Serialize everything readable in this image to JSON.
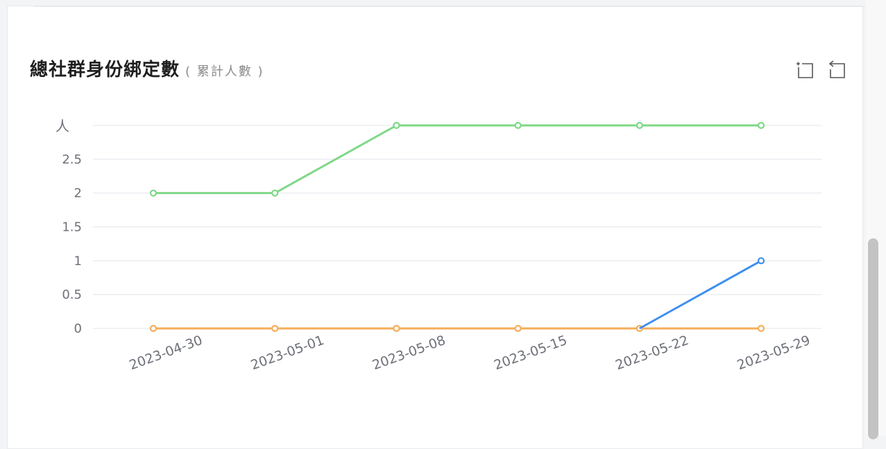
{
  "header": {
    "title": "總社群身份綁定數",
    "subtitle": "( 累計人數 )"
  },
  "toolbar": {
    "zoom_icon": "zoom-select-icon",
    "restore_icon": "zoom-restore-icon"
  },
  "colors": {
    "green": "#7ed886",
    "blue": "#3f8ff0",
    "orange": "#f6ad5a",
    "grid": "#e3e4ec",
    "axis_text": "#6e7079"
  },
  "chart_data": {
    "type": "line",
    "ylabel": "人",
    "ylim": [
      0,
      3
    ],
    "yticks": [
      "0",
      "0.5",
      "1",
      "1.5",
      "2",
      "2.5"
    ],
    "categories": [
      "2023-04-30",
      "2023-05-01",
      "2023-05-08",
      "2023-05-15",
      "2023-05-22",
      "2023-05-29"
    ],
    "grid": true,
    "series": [
      {
        "color": "#7ed886",
        "values": [
          2,
          2,
          3,
          3,
          3,
          3
        ]
      },
      {
        "color": "#f6ad5a",
        "values": [
          0,
          0,
          0,
          0,
          0,
          0
        ]
      },
      {
        "color": "#3f8ff0",
        "values": [
          null,
          null,
          null,
          null,
          0,
          1
        ]
      }
    ]
  }
}
